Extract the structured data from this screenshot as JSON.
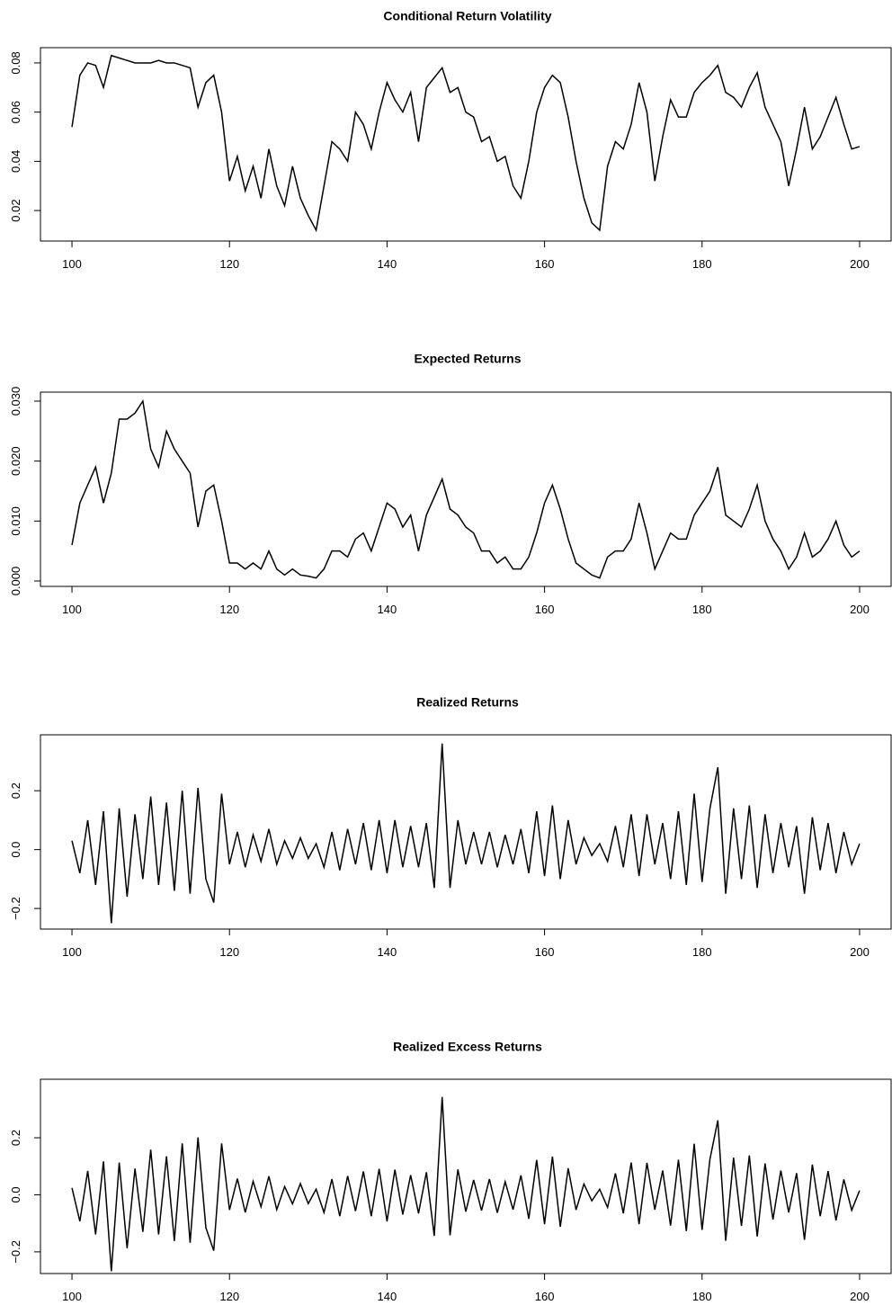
{
  "chart_data": [
    {
      "type": "line",
      "title": "Conditional Return Volatility",
      "color": "#000000",
      "x": [
        100,
        101,
        102,
        103,
        104,
        105,
        106,
        107,
        108,
        109,
        110,
        111,
        112,
        113,
        114,
        115,
        116,
        117,
        118,
        119,
        120,
        121,
        122,
        123,
        124,
        125,
        126,
        127,
        128,
        129,
        130,
        131,
        132,
        133,
        134,
        135,
        136,
        137,
        138,
        139,
        140,
        141,
        142,
        143,
        144,
        145,
        146,
        147,
        148,
        149,
        150,
        151,
        152,
        153,
        154,
        155,
        156,
        157,
        158,
        159,
        160,
        161,
        162,
        163,
        164,
        165,
        166,
        167,
        168,
        169,
        170,
        171,
        172,
        173,
        174,
        175,
        176,
        177,
        178,
        179,
        180,
        181,
        182,
        183,
        184,
        185,
        186,
        187,
        188,
        189,
        190,
        191,
        192,
        193,
        194,
        195,
        196,
        197,
        198,
        199,
        200
      ],
      "values": [
        0.054,
        0.075,
        0.08,
        0.079,
        0.07,
        0.083,
        0.082,
        0.081,
        0.08,
        0.08,
        0.08,
        0.081,
        0.08,
        0.08,
        0.079,
        0.078,
        0.062,
        0.072,
        0.075,
        0.06,
        0.032,
        0.042,
        0.028,
        0.038,
        0.025,
        0.045,
        0.03,
        0.022,
        0.038,
        0.025,
        0.018,
        0.012,
        0.03,
        0.048,
        0.045,
        0.04,
        0.06,
        0.055,
        0.045,
        0.06,
        0.072,
        0.065,
        0.06,
        0.068,
        0.048,
        0.07,
        0.074,
        0.078,
        0.068,
        0.07,
        0.06,
        0.058,
        0.048,
        0.05,
        0.04,
        0.042,
        0.03,
        0.025,
        0.04,
        0.06,
        0.07,
        0.075,
        0.072,
        0.058,
        0.04,
        0.025,
        0.015,
        0.012,
        0.038,
        0.048,
        0.045,
        0.055,
        0.072,
        0.06,
        0.032,
        0.05,
        0.065,
        0.058,
        0.058,
        0.068,
        0.072,
        0.075,
        0.079,
        0.068,
        0.066,
        0.062,
        0.07,
        0.076,
        0.062,
        0.055,
        0.048,
        0.03,
        0.045,
        0.062,
        0.045,
        0.05,
        0.058,
        0.066,
        0.055,
        0.045,
        0.046
      ],
      "xlim": [
        96,
        204
      ],
      "ylim": [
        0.0076,
        0.0862
      ],
      "xticks": [
        100,
        120,
        140,
        160,
        180,
        200
      ],
      "yticks": [
        0.02,
        0.04,
        0.06,
        0.08
      ]
    },
    {
      "type": "line",
      "title": "Expected Returns",
      "color": "#000000",
      "x": [
        100,
        101,
        102,
        103,
        104,
        105,
        106,
        107,
        108,
        109,
        110,
        111,
        112,
        113,
        114,
        115,
        116,
        117,
        118,
        119,
        120,
        121,
        122,
        123,
        124,
        125,
        126,
        127,
        128,
        129,
        130,
        131,
        132,
        133,
        134,
        135,
        136,
        137,
        138,
        139,
        140,
        141,
        142,
        143,
        144,
        145,
        146,
        147,
        148,
        149,
        150,
        151,
        152,
        153,
        154,
        155,
        156,
        157,
        158,
        159,
        160,
        161,
        162,
        163,
        164,
        165,
        166,
        167,
        168,
        169,
        170,
        171,
        172,
        173,
        174,
        175,
        176,
        177,
        178,
        179,
        180,
        181,
        182,
        183,
        184,
        185,
        186,
        187,
        188,
        189,
        190,
        191,
        192,
        193,
        194,
        195,
        196,
        197,
        198,
        199,
        200
      ],
      "values": [
        0.006,
        0.013,
        0.016,
        0.019,
        0.013,
        0.018,
        0.027,
        0.027,
        0.028,
        0.03,
        0.022,
        0.019,
        0.025,
        0.022,
        0.02,
        0.018,
        0.009,
        0.015,
        0.016,
        0.01,
        0.003,
        0.003,
        0.002,
        0.003,
        0.002,
        0.005,
        0.002,
        0.001,
        0.002,
        0.001,
        0.0008,
        0.0005,
        0.002,
        0.005,
        0.005,
        0.004,
        0.007,
        0.008,
        0.005,
        0.009,
        0.013,
        0.012,
        0.009,
        0.011,
        0.005,
        0.011,
        0.014,
        0.017,
        0.012,
        0.011,
        0.009,
        0.008,
        0.005,
        0.005,
        0.003,
        0.004,
        0.002,
        0.002,
        0.004,
        0.008,
        0.013,
        0.016,
        0.012,
        0.007,
        0.003,
        0.002,
        0.001,
        0.0005,
        0.004,
        0.005,
        0.005,
        0.007,
        0.013,
        0.008,
        0.002,
        0.005,
        0.008,
        0.007,
        0.007,
        0.011,
        0.013,
        0.015,
        0.019,
        0.011,
        0.01,
        0.009,
        0.012,
        0.016,
        0.01,
        0.007,
        0.005,
        0.002,
        0.004,
        0.008,
        0.004,
        0.005,
        0.007,
        0.01,
        0.006,
        0.004,
        0.005
      ],
      "xlim": [
        96,
        204
      ],
      "ylim": [
        -0.0009,
        0.0315
      ],
      "xticks": [
        100,
        120,
        140,
        160,
        180,
        200
      ],
      "yticks": [
        {
          "value": 0,
          "label": "0.000"
        },
        {
          "value": 0.01,
          "label": "0.010"
        },
        {
          "value": 0.02,
          "label": "0.020"
        },
        {
          "value": 0.03,
          "label": "0.030"
        }
      ]
    },
    {
      "type": "line",
      "title": "Realized Returns",
      "color": "#000000",
      "x": [
        100,
        101,
        102,
        103,
        104,
        105,
        106,
        107,
        108,
        109,
        110,
        111,
        112,
        113,
        114,
        115,
        116,
        117,
        118,
        119,
        120,
        121,
        122,
        123,
        124,
        125,
        126,
        127,
        128,
        129,
        130,
        131,
        132,
        133,
        134,
        135,
        136,
        137,
        138,
        139,
        140,
        141,
        142,
        143,
        144,
        145,
        146,
        147,
        148,
        149,
        150,
        151,
        152,
        153,
        154,
        155,
        156,
        157,
        158,
        159,
        160,
        161,
        162,
        163,
        164,
        165,
        166,
        167,
        168,
        169,
        170,
        171,
        172,
        173,
        174,
        175,
        176,
        177,
        178,
        179,
        180,
        181,
        182,
        183,
        184,
        185,
        186,
        187,
        188,
        189,
        190,
        191,
        192,
        193,
        194,
        195,
        196,
        197,
        198,
        199,
        200
      ],
      "values": [
        0.03,
        -0.08,
        0.1,
        -0.12,
        0.13,
        -0.25,
        0.14,
        -0.16,
        0.12,
        -0.1,
        0.18,
        -0.12,
        0.16,
        -0.14,
        0.2,
        -0.15,
        0.21,
        -0.1,
        -0.18,
        0.19,
        -0.05,
        0.06,
        -0.06,
        0.05,
        -0.04,
        0.07,
        -0.05,
        0.03,
        -0.03,
        0.04,
        -0.03,
        0.02,
        -0.06,
        0.06,
        -0.07,
        0.07,
        -0.05,
        0.09,
        -0.07,
        0.1,
        -0.08,
        0.1,
        -0.06,
        0.08,
        -0.06,
        0.09,
        -0.13,
        0.36,
        -0.13,
        0.1,
        -0.05,
        0.06,
        -0.05,
        0.06,
        -0.06,
        0.05,
        -0.05,
        0.07,
        -0.08,
        0.13,
        -0.09,
        0.15,
        -0.1,
        0.1,
        -0.05,
        0.04,
        -0.02,
        0.02,
        -0.04,
        0.08,
        -0.06,
        0.12,
        -0.09,
        0.12,
        -0.05,
        0.09,
        -0.1,
        0.13,
        -0.12,
        0.19,
        -0.11,
        0.14,
        0.28,
        -0.15,
        0.14,
        -0.1,
        0.15,
        -0.13,
        0.12,
        -0.08,
        0.09,
        -0.06,
        0.08,
        -0.15,
        0.11,
        -0.07,
        0.09,
        -0.08,
        0.06,
        -0.05,
        0.02
      ],
      "xlim": [
        96,
        204
      ],
      "ylim": [
        -0.27,
        0.39
      ],
      "xticks": [
        100,
        120,
        140,
        160,
        180,
        200
      ],
      "yticks": [
        {
          "value": -0.2,
          "label": "−0.2"
        },
        {
          "value": 0,
          "label": "0.0"
        },
        0.2
      ]
    },
    {
      "type": "line",
      "title": "Realized Excess Returns",
      "color": "#000000",
      "x": [
        100,
        101,
        102,
        103,
        104,
        105,
        106,
        107,
        108,
        109,
        110,
        111,
        112,
        113,
        114,
        115,
        116,
        117,
        118,
        119,
        120,
        121,
        122,
        123,
        124,
        125,
        126,
        127,
        128,
        129,
        130,
        131,
        132,
        133,
        134,
        135,
        136,
        137,
        138,
        139,
        140,
        141,
        142,
        143,
        144,
        145,
        146,
        147,
        148,
        149,
        150,
        151,
        152,
        153,
        154,
        155,
        156,
        157,
        158,
        159,
        160,
        161,
        162,
        163,
        164,
        165,
        166,
        167,
        168,
        169,
        170,
        171,
        172,
        173,
        174,
        175,
        176,
        177,
        178,
        179,
        180,
        181,
        182,
        183,
        184,
        185,
        186,
        187,
        188,
        189,
        190,
        191,
        192,
        193,
        194,
        195,
        196,
        197,
        198,
        199,
        200
      ],
      "values": [
        0.024,
        -0.093,
        0.084,
        -0.139,
        0.117,
        -0.268,
        0.113,
        -0.187,
        0.092,
        -0.13,
        0.158,
        -0.139,
        0.135,
        -0.162,
        0.18,
        -0.168,
        0.201,
        -0.115,
        -0.196,
        0.18,
        -0.053,
        0.057,
        -0.062,
        0.047,
        -0.042,
        0.065,
        -0.052,
        0.029,
        -0.032,
        0.039,
        -0.031,
        0.0195,
        -0.062,
        0.055,
        -0.075,
        0.066,
        -0.057,
        0.082,
        -0.075,
        0.091,
        -0.093,
        0.088,
        -0.069,
        0.069,
        -0.065,
        0.079,
        -0.144,
        0.343,
        -0.142,
        0.089,
        -0.059,
        0.052,
        -0.055,
        0.055,
        -0.063,
        0.046,
        -0.052,
        0.068,
        -0.084,
        0.122,
        -0.103,
        0.134,
        -0.112,
        0.093,
        -0.053,
        0.038,
        -0.021,
        0.0195,
        -0.044,
        0.075,
        -0.065,
        0.113,
        -0.103,
        0.112,
        -0.052,
        0.085,
        -0.108,
        0.123,
        -0.127,
        0.179,
        -0.123,
        0.125,
        0.261,
        -0.161,
        0.13,
        -0.109,
        0.138,
        -0.146,
        0.11,
        -0.087,
        0.085,
        -0.062,
        0.076,
        -0.158,
        0.106,
        -0.075,
        0.083,
        -0.09,
        0.054,
        -0.054,
        0.015
      ],
      "xlim": [
        96,
        204
      ],
      "ylim": [
        -0.276,
        0.405
      ],
      "xticks": [
        100,
        120,
        140,
        160,
        180,
        200
      ],
      "yticks": [
        {
          "value": -0.2,
          "label": "−0.2"
        },
        {
          "value": 0,
          "label": "0.0"
        },
        0.2
      ]
    }
  ]
}
